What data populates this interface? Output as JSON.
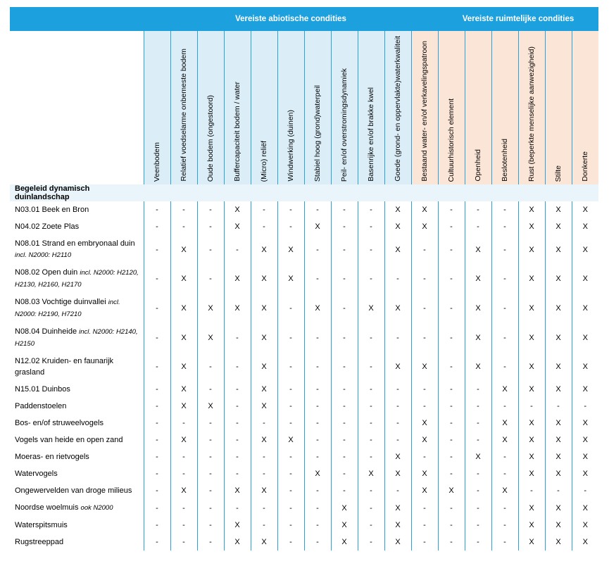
{
  "table": {
    "groups": [
      "Vereiste abiotische condities",
      "Vereiste ruimtelijke condities"
    ],
    "columns": [
      "Veenbodem",
      "Relatief voedselarme onbemeste bodem",
      "Oude bodem (ongestoord)",
      "Buffercapaciteit bodem / water",
      "(Micro) reliëf",
      "Windwerking (duinen)",
      "Stabiel hoog (grond)waterpeil",
      "Peil- en/of overstromingsdynamiek",
      "Basenrijke en/of brakke kwel",
      "Goede (grond- en oppervlakte)waterkwaliteit",
      "Bestaand water- en/of verkavelingspatroon",
      "Cultuurhistorisch element",
      "Openheid",
      "Beslotenheid",
      "Rust (beperkte menselijke aanwezigheid)",
      "Stilte",
      "Donkerte"
    ],
    "section": "Begeleid dynamisch duinlandschap",
    "rows": [
      {
        "name": "N03.01 Beek en Bron",
        "cells": [
          "-",
          "-",
          "-",
          "X",
          "-",
          "-",
          "-",
          "-",
          "-",
          "X",
          "X",
          "-",
          "-",
          "-",
          "X",
          "X",
          "X"
        ]
      },
      {
        "name": "N04.02 Zoete Plas",
        "cells": [
          "-",
          "-",
          "-",
          "X",
          "-",
          "-",
          "X",
          "-",
          "-",
          "X",
          "X",
          "-",
          "-",
          "-",
          "X",
          "X",
          "X"
        ]
      },
      {
        "name": "N08.01 Strand en embryonaal duin",
        "note": "incl. N2000: H2110",
        "cells": [
          "-",
          "X",
          "-",
          "-",
          "X",
          "X",
          "-",
          "-",
          "-",
          "X",
          "-",
          "-",
          "X",
          "-",
          "X",
          "X",
          "X"
        ]
      },
      {
        "name": "N08.02 Open duin",
        "note": "incl. N2000: H2120, H2130, H2160, H2170",
        "cells": [
          "-",
          "X",
          "-",
          "X",
          "X",
          "X",
          "-",
          "-",
          "-",
          "-",
          "-",
          "-",
          "X",
          "-",
          "X",
          "X",
          "X"
        ]
      },
      {
        "name": "N08.03 Vochtige duinvallei",
        "note": "incl. N2000: H2190, H7210",
        "cells": [
          "-",
          "X",
          "X",
          "X",
          "X",
          "-",
          "X",
          "-",
          "X",
          "X",
          "-",
          "-",
          "X",
          "-",
          "X",
          "X",
          "X"
        ]
      },
      {
        "name": "N08.04 Duinheide",
        "note": "incl. N2000: H2140, H2150",
        "cells": [
          "-",
          "X",
          "X",
          "-",
          "X",
          "-",
          "-",
          "-",
          "-",
          "-",
          "-",
          "-",
          "X",
          "-",
          "X",
          "X",
          "X"
        ]
      },
      {
        "name": "N12.02 Kruiden- en faunarijk grasland",
        "cells": [
          "-",
          "X",
          "-",
          "-",
          "X",
          "-",
          "-",
          "-",
          "-",
          "X",
          "X",
          "-",
          "X",
          "-",
          "X",
          "X",
          "X"
        ]
      },
      {
        "name": "N15.01 Duinbos",
        "cells": [
          "-",
          "X",
          "-",
          "-",
          "X",
          "-",
          "-",
          "-",
          "-",
          "-",
          "-",
          "-",
          "-",
          "X",
          "X",
          "X",
          "X"
        ]
      },
      {
        "name": "Paddenstoelen",
        "cells": [
          "-",
          "X",
          "X",
          "-",
          "X",
          "-",
          "-",
          "-",
          "-",
          "-",
          "-",
          "-",
          "-",
          "-",
          "-",
          "-",
          "-"
        ]
      },
      {
        "name": "Bos- en/of struweelvogels",
        "cells": [
          "-",
          "-",
          "-",
          "-",
          "-",
          "-",
          "-",
          "-",
          "-",
          "-",
          "X",
          "-",
          "-",
          "X",
          "X",
          "X",
          "X"
        ]
      },
      {
        "name": "Vogels van heide en open zand",
        "cells": [
          "-",
          "X",
          "-",
          "-",
          "X",
          "X",
          "-",
          "-",
          "-",
          "-",
          "X",
          "-",
          "-",
          "X",
          "X",
          "X",
          "X"
        ]
      },
      {
        "name": "Moeras- en rietvogels",
        "cells": [
          "-",
          "-",
          "-",
          "-",
          "-",
          "-",
          "-",
          "-",
          "-",
          "X",
          "-",
          "-",
          "X",
          "-",
          "X",
          "X",
          "X"
        ]
      },
      {
        "name": "Watervogels",
        "cells": [
          "-",
          "-",
          "-",
          "-",
          "-",
          "-",
          "X",
          "-",
          "X",
          "X",
          "X",
          "-",
          "-",
          "-",
          "X",
          "X",
          "X"
        ]
      },
      {
        "name": "Ongewervelden van droge milieus",
        "cells": [
          "-",
          "X",
          "-",
          "X",
          "X",
          "-",
          "-",
          "-",
          "-",
          "-",
          "X",
          "X",
          "-",
          "X",
          "-",
          "-",
          "-"
        ]
      },
      {
        "name": "Noordse woelmuis",
        "note": "ook N2000",
        "cells": [
          "-",
          "-",
          "-",
          "-",
          "-",
          "-",
          "-",
          "X",
          "-",
          "X",
          "-",
          "-",
          "-",
          "-",
          "X",
          "X",
          "X"
        ]
      },
      {
        "name": "Waterspitsmuis",
        "cells": [
          "-",
          "-",
          "-",
          "X",
          "-",
          "-",
          "-",
          "X",
          "-",
          "X",
          "-",
          "-",
          "-",
          "-",
          "X",
          "X",
          "X"
        ]
      },
      {
        "name": "Rugstreeppad",
        "cells": [
          "-",
          "-",
          "-",
          "X",
          "X",
          "-",
          "-",
          "X",
          "-",
          "X",
          "-",
          "-",
          "-",
          "-",
          "X",
          "X",
          "X"
        ]
      }
    ]
  }
}
